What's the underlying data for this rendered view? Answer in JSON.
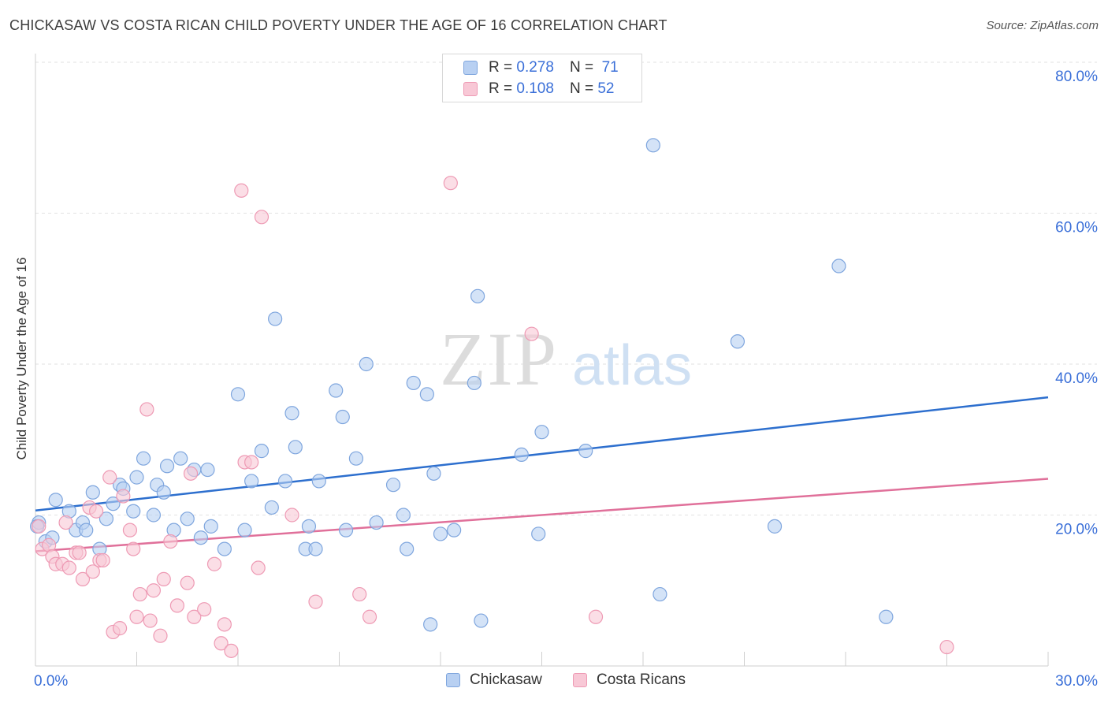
{
  "title": "CHICKASAW VS COSTA RICAN CHILD POVERTY UNDER THE AGE OF 16 CORRELATION CHART",
  "source": "Source: ZipAtlas.com",
  "watermark": {
    "zip": "ZIP",
    "atlas": "atlas"
  },
  "legend_stats": [
    {
      "r_label": "R =",
      "r_value": "0.278",
      "n_label": "N =",
      "n_value": "71"
    },
    {
      "r_label": "R =",
      "r_value": "0.108",
      "n_label": "N =",
      "n_value": "52"
    }
  ],
  "colors": {
    "blue_fill": "#b8d0f2",
    "blue_stroke": "#7fa6de",
    "blue_line": "#2d6fce",
    "pink_fill": "#f8c8d6",
    "pink_stroke": "#ee9ab4",
    "pink_line": "#e0709a",
    "axis_label": "#3a6fd8",
    "grid": "#e2e2e2"
  },
  "chart_data": {
    "type": "scatter",
    "title": "CHICKASAW VS COSTA RICAN CHILD POVERTY UNDER THE AGE OF 16 CORRELATION CHART",
    "xlabel": "",
    "ylabel": "Child Poverty Under the Age of 16",
    "xlim": [
      0,
      30
    ],
    "ylim": [
      0,
      80
    ],
    "x_tick_labels": [
      "0.0%",
      "30.0%"
    ],
    "y_ticks": [
      20,
      40,
      60,
      80
    ],
    "y_tick_labels": [
      "20.0%",
      "40.0%",
      "60.0%",
      "80.0%"
    ],
    "grid": "horizontal dashed",
    "legend_position": "top-center",
    "series": [
      {
        "name": "Chickasaw",
        "color": "#b8d0f2",
        "trend": [
          [
            0,
            20.6
          ],
          [
            30,
            35.6
          ]
        ],
        "points": [
          [
            0.1,
            19
          ],
          [
            0.3,
            16.5
          ],
          [
            0.5,
            17
          ],
          [
            0.6,
            22
          ],
          [
            1.0,
            20.5
          ],
          [
            1.2,
            18
          ],
          [
            1.4,
            19
          ],
          [
            1.5,
            18
          ],
          [
            1.7,
            23
          ],
          [
            1.9,
            15.5
          ],
          [
            2.1,
            19.5
          ],
          [
            2.3,
            21.5
          ],
          [
            2.5,
            24
          ],
          [
            2.6,
            23.5
          ],
          [
            2.9,
            20.5
          ],
          [
            3.0,
            25
          ],
          [
            3.2,
            27.5
          ],
          [
            3.5,
            20
          ],
          [
            3.6,
            24
          ],
          [
            3.8,
            23
          ],
          [
            3.9,
            26.5
          ],
          [
            4.1,
            18
          ],
          [
            4.3,
            27.5
          ],
          [
            4.5,
            19.5
          ],
          [
            4.7,
            26
          ],
          [
            4.9,
            17
          ],
          [
            5.1,
            26
          ],
          [
            5.2,
            18.5
          ],
          [
            5.6,
            15.5
          ],
          [
            6.0,
            36
          ],
          [
            6.2,
            18
          ],
          [
            6.4,
            24.5
          ],
          [
            6.7,
            28.5
          ],
          [
            7.0,
            21
          ],
          [
            7.1,
            46
          ],
          [
            7.4,
            24.5
          ],
          [
            7.6,
            33.5
          ],
          [
            7.7,
            29
          ],
          [
            8.0,
            15.5
          ],
          [
            8.1,
            18.5
          ],
          [
            8.3,
            15.5
          ],
          [
            8.4,
            24.5
          ],
          [
            8.9,
            36.5
          ],
          [
            9.1,
            33
          ],
          [
            9.2,
            18
          ],
          [
            9.5,
            27.5
          ],
          [
            9.8,
            40
          ],
          [
            10.1,
            19
          ],
          [
            10.6,
            24
          ],
          [
            10.9,
            20
          ],
          [
            11.0,
            15.5
          ],
          [
            11.2,
            37.5
          ],
          [
            11.6,
            36
          ],
          [
            11.7,
            5.5
          ],
          [
            11.8,
            25.5
          ],
          [
            12.0,
            17.5
          ],
          [
            12.4,
            18
          ],
          [
            13.0,
            37.5
          ],
          [
            13.1,
            49
          ],
          [
            13.2,
            6
          ],
          [
            14.4,
            28
          ],
          [
            14.9,
            17.5
          ],
          [
            15.0,
            31
          ],
          [
            16.3,
            28.5
          ],
          [
            18.3,
            69
          ],
          [
            18.5,
            9.5
          ],
          [
            20.8,
            43
          ],
          [
            21.9,
            18.5
          ],
          [
            23.8,
            53
          ],
          [
            25.2,
            6.5
          ],
          [
            0.05,
            18.5
          ]
        ]
      },
      {
        "name": "Costa Ricans",
        "color": "#f8c8d6",
        "trend": [
          [
            0,
            15.2
          ],
          [
            30,
            24.8
          ]
        ],
        "points": [
          [
            0.1,
            18.5
          ],
          [
            0.2,
            15.5
          ],
          [
            0.4,
            16
          ],
          [
            0.5,
            14.5
          ],
          [
            0.6,
            13.5
          ],
          [
            0.8,
            13.5
          ],
          [
            0.9,
            19
          ],
          [
            1.0,
            13
          ],
          [
            1.2,
            15
          ],
          [
            1.3,
            15
          ],
          [
            1.4,
            11.5
          ],
          [
            1.6,
            21
          ],
          [
            1.7,
            12.5
          ],
          [
            1.8,
            20.5
          ],
          [
            1.9,
            14
          ],
          [
            2.0,
            14
          ],
          [
            2.2,
            25
          ],
          [
            2.3,
            4.5
          ],
          [
            2.5,
            5
          ],
          [
            2.6,
            22.5
          ],
          [
            2.8,
            18
          ],
          [
            2.9,
            15.5
          ],
          [
            3.0,
            6.5
          ],
          [
            3.1,
            9.5
          ],
          [
            3.3,
            34
          ],
          [
            3.4,
            6
          ],
          [
            3.5,
            10
          ],
          [
            3.7,
            4
          ],
          [
            3.8,
            11.5
          ],
          [
            4.0,
            16.5
          ],
          [
            4.2,
            8
          ],
          [
            4.5,
            11
          ],
          [
            4.6,
            25.5
          ],
          [
            4.7,
            6.5
          ],
          [
            5.0,
            7.5
          ],
          [
            5.3,
            13.5
          ],
          [
            5.5,
            3
          ],
          [
            5.6,
            5.5
          ],
          [
            5.8,
            2
          ],
          [
            6.1,
            63
          ],
          [
            6.2,
            27
          ],
          [
            6.4,
            27
          ],
          [
            6.6,
            13
          ],
          [
            6.7,
            59.5
          ],
          [
            7.6,
            20
          ],
          [
            8.3,
            8.5
          ],
          [
            9.6,
            9.5
          ],
          [
            9.9,
            6.5
          ],
          [
            12.3,
            64
          ],
          [
            14.7,
            44
          ],
          [
            16.6,
            6.5
          ],
          [
            27.0,
            2.5
          ]
        ]
      }
    ]
  },
  "bottom_legend": [
    "Chickasaw",
    "Costa Ricans"
  ]
}
